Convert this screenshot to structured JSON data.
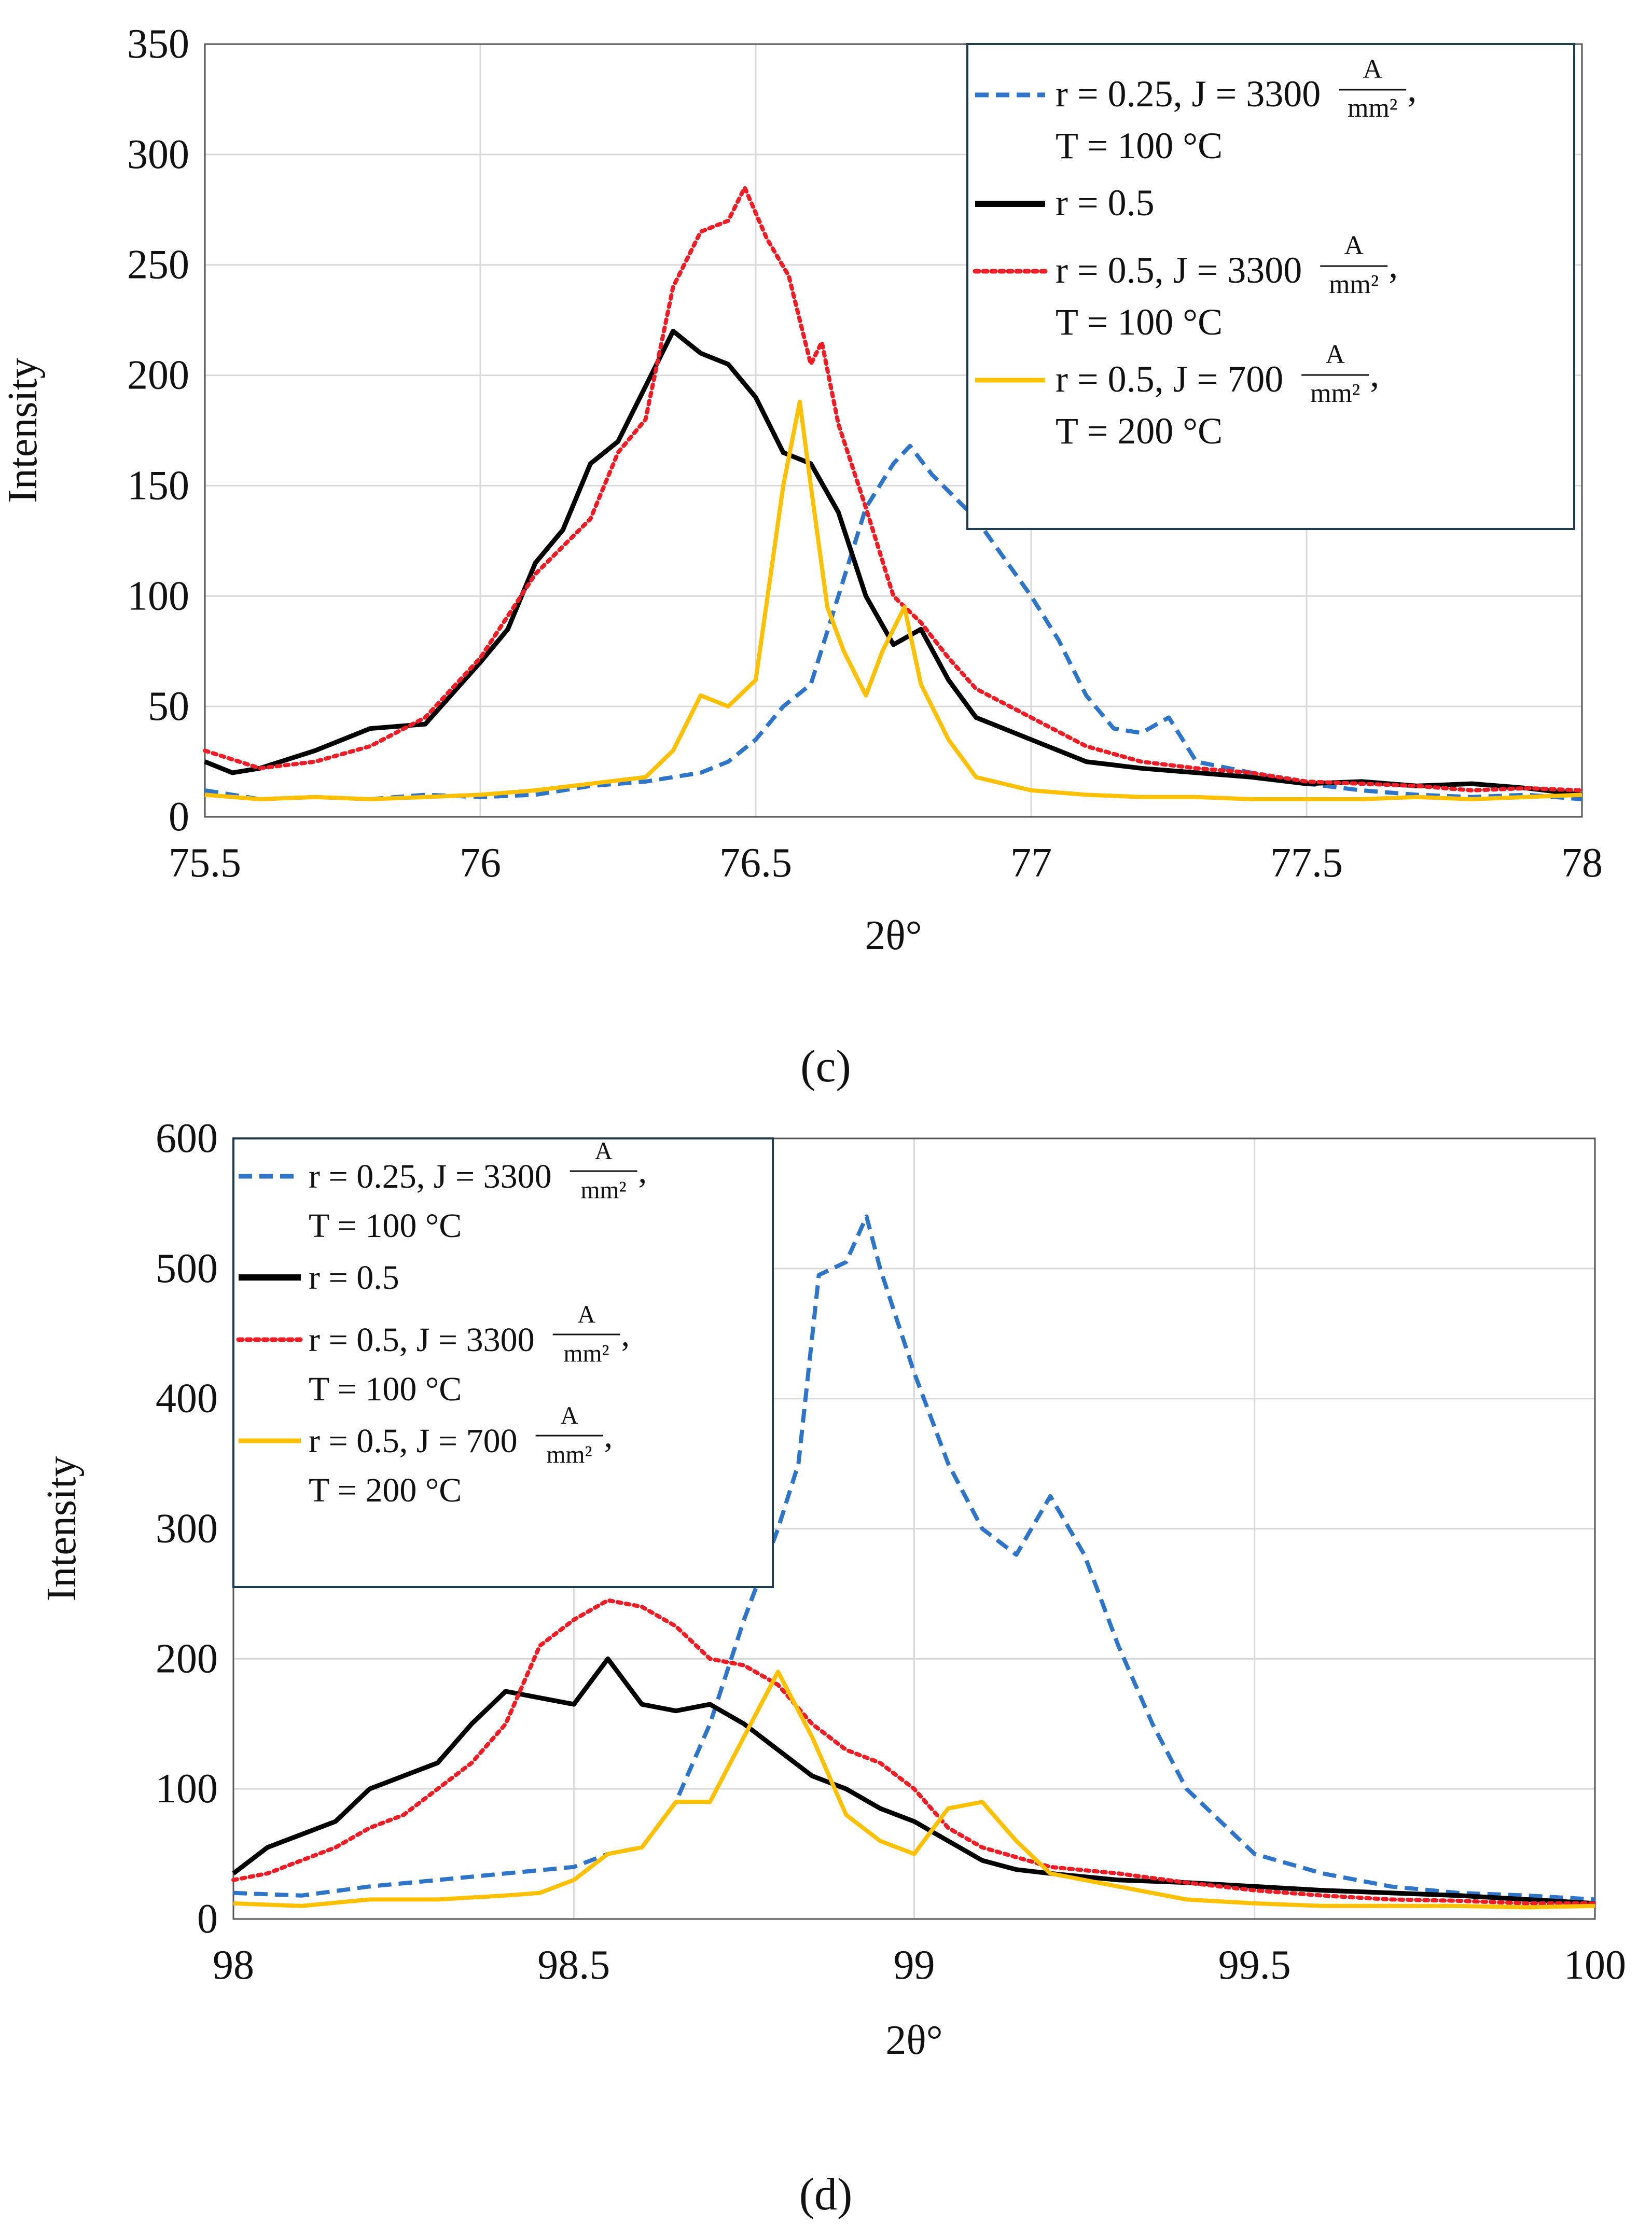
{
  "figure": {
    "caption_c": "(c)",
    "caption_d": "(d)"
  },
  "legend_entries": [
    {
      "main": "r = 0.25, J = 3300",
      "frac_num": "A",
      "frac_den": "mm²",
      "trail": ",",
      "second": "T = 100 °C"
    },
    {
      "main": "r = 0.5",
      "frac_num": "",
      "frac_den": "",
      "trail": "",
      "second": ""
    },
    {
      "main": "r = 0.5, J = 3300",
      "frac_num": "A",
      "frac_den": "mm²",
      "trail": ",",
      "second": "T = 100 °C"
    },
    {
      "main": "r = 0.5, J = 700",
      "frac_num": "A",
      "frac_den": "mm²",
      "trail": ",",
      "second": "T = 200 °C"
    }
  ],
  "series_styles": [
    {
      "color": "#2e75c9",
      "dash": "dashed"
    },
    {
      "color": "#000000",
      "dash": "solid"
    },
    {
      "color": "#ee1c25",
      "dash": "dotted"
    },
    {
      "color": "#ffc000",
      "dash": "solid"
    }
  ],
  "chart_data": [
    {
      "type": "line",
      "title": "",
      "xlabel": "2θ°",
      "ylabel": "Intensity",
      "xlim": [
        75.5,
        78
      ],
      "ylim": [
        0,
        350
      ],
      "xticks": [
        "75.5",
        "76",
        "76.5",
        "77",
        "77.5",
        "78"
      ],
      "yticks": [
        "0",
        "50",
        "100",
        "150",
        "200",
        "250",
        "300",
        "350"
      ],
      "legend_position": "top-right",
      "series": [
        {
          "name": "r = 0.25, J = 3300 A/mm², T = 100 °C",
          "x": [
            75.5,
            75.6,
            75.7,
            75.8,
            75.9,
            76.0,
            76.1,
            76.2,
            76.3,
            76.4,
            76.45,
            76.5,
            76.55,
            76.6,
            76.65,
            76.7,
            76.75,
            76.78,
            76.82,
            76.9,
            77.0,
            77.05,
            77.1,
            77.15,
            77.2,
            77.25,
            77.3,
            77.4,
            77.5,
            77.6,
            77.7,
            77.8,
            77.9,
            78.0
          ],
          "y": [
            12,
            8,
            9,
            8,
            10,
            9,
            10,
            14,
            16,
            20,
            25,
            35,
            50,
            60,
            100,
            140,
            160,
            168,
            155,
            135,
            100,
            80,
            55,
            40,
            38,
            45,
            25,
            20,
            15,
            12,
            10,
            9,
            10,
            8
          ]
        },
        {
          "name": "r = 0.5",
          "x": [
            75.5,
            75.55,
            75.6,
            75.7,
            75.8,
            75.9,
            76.0,
            76.05,
            76.1,
            76.15,
            76.2,
            76.25,
            76.3,
            76.35,
            76.4,
            76.45,
            76.5,
            76.55,
            76.6,
            76.65,
            76.7,
            76.75,
            76.8,
            76.85,
            76.9,
            76.95,
            77.0,
            77.1,
            77.2,
            77.3,
            77.4,
            77.5,
            77.6,
            77.7,
            77.8,
            77.9,
            78.0
          ],
          "y": [
            25,
            20,
            22,
            30,
            40,
            42,
            70,
            85,
            115,
            130,
            160,
            170,
            195,
            220,
            210,
            205,
            190,
            165,
            160,
            138,
            100,
            78,
            85,
            62,
            45,
            40,
            35,
            25,
            22,
            20,
            18,
            15,
            16,
            14,
            15,
            13,
            10
          ]
        },
        {
          "name": "r = 0.5, J = 3300 A/mm², T = 100 °C",
          "x": [
            75.5,
            75.6,
            75.7,
            75.8,
            75.9,
            76.0,
            76.1,
            76.2,
            76.25,
            76.3,
            76.35,
            76.4,
            76.45,
            76.48,
            76.52,
            76.56,
            76.6,
            76.62,
            76.65,
            76.7,
            76.75,
            76.8,
            76.85,
            76.9,
            77.0,
            77.1,
            77.2,
            77.3,
            77.4,
            77.5,
            77.6,
            77.7,
            77.8,
            77.9,
            78.0
          ],
          "y": [
            30,
            22,
            25,
            32,
            45,
            72,
            110,
            135,
            165,
            180,
            240,
            265,
            270,
            285,
            262,
            245,
            205,
            215,
            178,
            140,
            100,
            88,
            72,
            58,
            45,
            32,
            25,
            22,
            20,
            16,
            15,
            14,
            12,
            13,
            12
          ]
        },
        {
          "name": "r = 0.5, J = 700 A/mm², T = 200 °C",
          "x": [
            75.5,
            75.6,
            75.7,
            75.8,
            75.9,
            76.0,
            76.1,
            76.2,
            76.3,
            76.35,
            76.4,
            76.45,
            76.5,
            76.55,
            76.58,
            76.6,
            76.63,
            76.66,
            76.7,
            76.73,
            76.77,
            76.8,
            76.85,
            76.9,
            77.0,
            77.1,
            77.2,
            77.3,
            77.4,
            77.5,
            77.6,
            77.7,
            77.8,
            77.9,
            78.0
          ],
          "y": [
            10,
            8,
            9,
            8,
            9,
            10,
            12,
            15,
            18,
            30,
            55,
            50,
            62,
            150,
            188,
            150,
            95,
            75,
            55,
            75,
            95,
            60,
            35,
            18,
            12,
            10,
            9,
            9,
            8,
            8,
            8,
            9,
            8,
            9,
            10
          ]
        }
      ]
    },
    {
      "type": "line",
      "title": "",
      "xlabel": "2θ°",
      "ylabel": "Intensity",
      "xlim": [
        98,
        100
      ],
      "ylim": [
        0,
        600
      ],
      "xticks": [
        "98",
        "98.5",
        "99",
        "99.5",
        "100"
      ],
      "yticks": [
        "0",
        "100",
        "200",
        "300",
        "400",
        "500",
        "600"
      ],
      "legend_position": "top-left",
      "series": [
        {
          "name": "r = 0.25, J = 3300 A/mm², T = 100 °C",
          "x": [
            98.0,
            98.1,
            98.2,
            98.3,
            98.4,
            98.5,
            98.55,
            98.6,
            98.65,
            98.7,
            98.75,
            98.8,
            98.83,
            98.86,
            98.9,
            98.93,
            98.95,
            99.0,
            99.05,
            99.1,
            99.15,
            99.2,
            99.25,
            99.3,
            99.35,
            99.4,
            99.45,
            99.5,
            99.6,
            99.7,
            99.8,
            99.9,
            100.0
          ],
          "y": [
            20,
            18,
            25,
            30,
            35,
            40,
            50,
            55,
            90,
            150,
            230,
            300,
            350,
            495,
            505,
            540,
            500,
            420,
            350,
            300,
            280,
            325,
            280,
            210,
            150,
            100,
            75,
            50,
            35,
            25,
            20,
            18,
            15
          ]
        },
        {
          "name": "r = 0.5",
          "x": [
            98.0,
            98.05,
            98.1,
            98.15,
            98.2,
            98.25,
            98.3,
            98.35,
            98.4,
            98.45,
            98.5,
            98.55,
            98.6,
            98.65,
            98.7,
            98.75,
            98.8,
            98.85,
            98.9,
            98.95,
            99.0,
            99.05,
            99.1,
            99.15,
            99.2,
            99.3,
            99.4,
            99.5,
            99.6,
            99.7,
            99.8,
            99.9,
            100.0
          ],
          "y": [
            35,
            55,
            65,
            75,
            100,
            110,
            120,
            150,
            175,
            170,
            165,
            200,
            165,
            160,
            165,
            150,
            130,
            110,
            100,
            85,
            75,
            60,
            45,
            38,
            35,
            30,
            28,
            25,
            22,
            20,
            18,
            15,
            12
          ]
        },
        {
          "name": "r = 0.5, J = 3300 A/mm², T = 100 °C",
          "x": [
            98.0,
            98.05,
            98.1,
            98.15,
            98.2,
            98.25,
            98.3,
            98.35,
            98.4,
            98.45,
            98.5,
            98.55,
            98.6,
            98.65,
            98.7,
            98.75,
            98.8,
            98.85,
            98.9,
            98.95,
            99.0,
            99.05,
            99.1,
            99.2,
            99.3,
            99.4,
            99.5,
            99.6,
            99.7,
            99.8,
            99.9,
            100.0
          ],
          "y": [
            30,
            35,
            45,
            55,
            70,
            80,
            100,
            120,
            150,
            210,
            230,
            245,
            240,
            225,
            200,
            195,
            180,
            150,
            130,
            120,
            100,
            70,
            55,
            40,
            35,
            28,
            22,
            18,
            15,
            14,
            12,
            12
          ]
        },
        {
          "name": "r = 0.5, J = 700 A/mm², T = 200 °C",
          "x": [
            98.0,
            98.1,
            98.2,
            98.3,
            98.4,
            98.45,
            98.5,
            98.55,
            98.6,
            98.65,
            98.7,
            98.75,
            98.78,
            98.8,
            98.85,
            98.9,
            98.95,
            99.0,
            99.05,
            99.1,
            99.15,
            99.2,
            99.3,
            99.4,
            99.5,
            99.6,
            99.7,
            99.8,
            99.9,
            100.0
          ],
          "y": [
            12,
            10,
            15,
            15,
            18,
            20,
            30,
            50,
            55,
            90,
            90,
            140,
            170,
            190,
            140,
            80,
            60,
            50,
            85,
            90,
            60,
            35,
            25,
            15,
            12,
            10,
            10,
            10,
            9,
            10
          ]
        }
      ]
    }
  ]
}
